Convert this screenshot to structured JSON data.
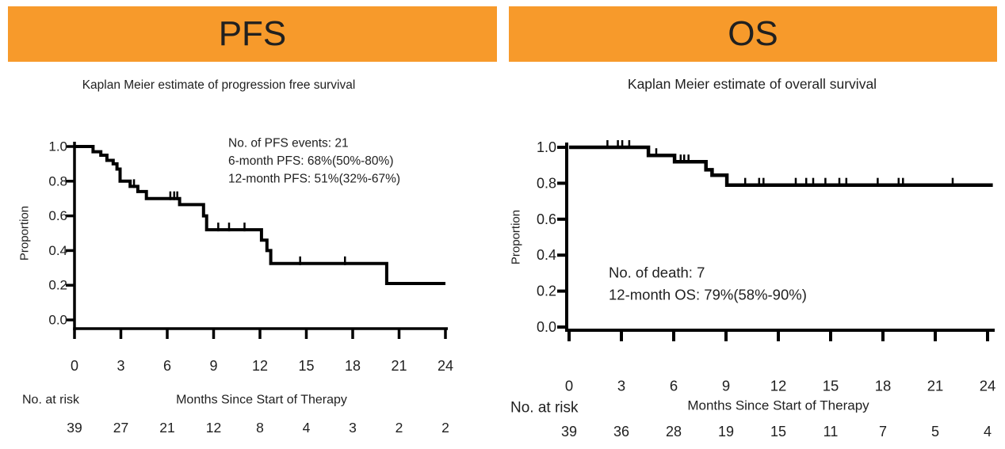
{
  "colors": {
    "banner_background": "#F79A2B",
    "banner_text": "#202020",
    "curve": "#000000",
    "axis": "#000000",
    "text": "#1f1f1f",
    "page_background": "#ffffff"
  },
  "chart_data": [
    {
      "type": "line",
      "subtype": "kaplan_meier_step",
      "panel": "PFS",
      "title": "Kaplan Meier estimate of progression free survival",
      "xlabel": "Months Since Start of Therapy",
      "ylabel": "Proportion",
      "at_risk_label": "No. at risk",
      "xlim": [
        0,
        24
      ],
      "ylim": [
        0,
        1
      ],
      "xticks": [
        0,
        3,
        6,
        9,
        12,
        15,
        18,
        21,
        24
      ],
      "yticks": [
        1.0,
        0.8,
        0.6,
        0.4,
        0.2,
        0.0
      ],
      "grid": false,
      "legend": null,
      "annotation": [
        "No. of PFS events: 21",
        "6-month PFS: 68%(50%-80%)",
        "12-month PFS: 51%(32%-67%)"
      ],
      "steps": [
        [
          0,
          1.0
        ],
        [
          1.2,
          0.97
        ],
        [
          1.7,
          0.95
        ],
        [
          2.1,
          0.92
        ],
        [
          2.5,
          0.9
        ],
        [
          2.75,
          0.87
        ],
        [
          2.95,
          0.8
        ],
        [
          3.6,
          0.77
        ],
        [
          4.1,
          0.74
        ],
        [
          4.65,
          0.7
        ],
        [
          6.8,
          0.665
        ],
        [
          8.35,
          0.6
        ],
        [
          8.55,
          0.52
        ],
        [
          12.1,
          0.46
        ],
        [
          12.45,
          0.4
        ],
        [
          12.7,
          0.325
        ],
        [
          20.2,
          0.21
        ]
      ],
      "curve_end_month": 24,
      "censor_marks": [
        [
          3.85,
          0.77
        ],
        [
          6.2,
          0.7
        ],
        [
          6.45,
          0.7
        ],
        [
          6.65,
          0.7
        ],
        [
          9.3,
          0.52
        ],
        [
          10.0,
          0.52
        ],
        [
          11.0,
          0.52
        ],
        [
          14.6,
          0.325
        ],
        [
          17.5,
          0.325
        ]
      ],
      "at_risk": [
        39,
        27,
        21,
        12,
        8,
        4,
        3,
        2,
        2
      ]
    },
    {
      "type": "line",
      "subtype": "kaplan_meier_step",
      "panel": "OS",
      "title": "Kaplan Meier estimate of overall survival",
      "xlabel": "Months Since Start of Therapy",
      "ylabel": "Proportion",
      "at_risk_label": "No. at risk",
      "xlim": [
        0,
        24
      ],
      "ylim": [
        0,
        1
      ],
      "xticks": [
        0,
        3,
        6,
        9,
        12,
        15,
        18,
        21,
        24
      ],
      "yticks": [
        1.0,
        0.8,
        0.6,
        0.4,
        0.2,
        0.0
      ],
      "grid": false,
      "legend": null,
      "annotation": [
        "No. of death: 7",
        "12-month OS: 79%(58%-90%)"
      ],
      "steps": [
        [
          0,
          1.0
        ],
        [
          4.55,
          0.955
        ],
        [
          6.05,
          0.92
        ],
        [
          7.85,
          0.875
        ],
        [
          8.2,
          0.845
        ],
        [
          9.05,
          0.79
        ]
      ],
      "curve_end_month": 24.3,
      "censor_marks": [
        [
          2.2,
          1.0
        ],
        [
          2.8,
          1.0
        ],
        [
          3.05,
          1.0
        ],
        [
          3.45,
          1.0
        ],
        [
          5.0,
          0.955
        ],
        [
          6.4,
          0.92
        ],
        [
          6.6,
          0.92
        ],
        [
          6.85,
          0.92
        ],
        [
          10.1,
          0.79
        ],
        [
          10.9,
          0.79
        ],
        [
          11.15,
          0.79
        ],
        [
          13.0,
          0.79
        ],
        [
          13.6,
          0.79
        ],
        [
          14.0,
          0.79
        ],
        [
          14.7,
          0.79
        ],
        [
          15.5,
          0.79
        ],
        [
          15.9,
          0.79
        ],
        [
          17.7,
          0.79
        ],
        [
          18.9,
          0.79
        ],
        [
          19.15,
          0.79
        ],
        [
          22.0,
          0.79
        ]
      ],
      "at_risk": [
        39,
        36,
        28,
        19,
        15,
        11,
        7,
        5,
        4
      ]
    }
  ]
}
